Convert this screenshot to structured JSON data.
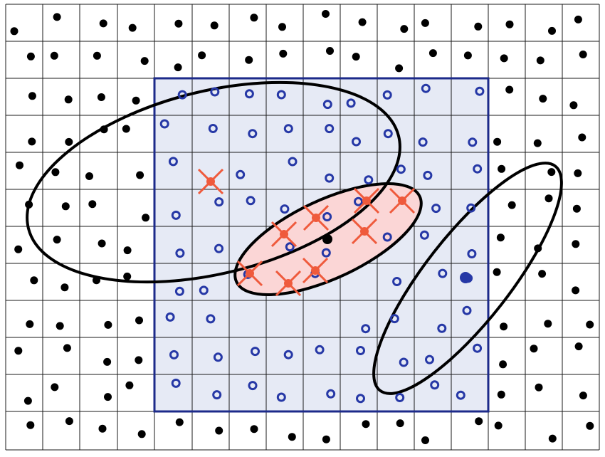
{
  "colors": {
    "background": "#ffffff",
    "grid_line": "#1a1a1a",
    "region_fill": "#e6eaf5",
    "region_border": "#1c2a8a",
    "outside_dot": "#000000",
    "inside_circle": "#2638a6",
    "highlight_fill": "#fbd6d6",
    "highlight_marker": "#ef5a3c",
    "ellipse_stroke": "#000000",
    "special_point": "#2638a6"
  },
  "marker_types": {
    "outside": "filled-black-dot",
    "inside": "hollow-blue-circle",
    "selected": "red-cross-with-dot",
    "center": "filled-black-dot",
    "query": "filled-blue-dot"
  },
  "figure": {
    "grid_columns": 16,
    "grid_rows": 12,
    "blue_region": {
      "col_start": 4,
      "col_end": 13,
      "row_start": 2,
      "row_end": 11
    },
    "ellipse_count": 3,
    "selected_point_count": 9
  }
}
